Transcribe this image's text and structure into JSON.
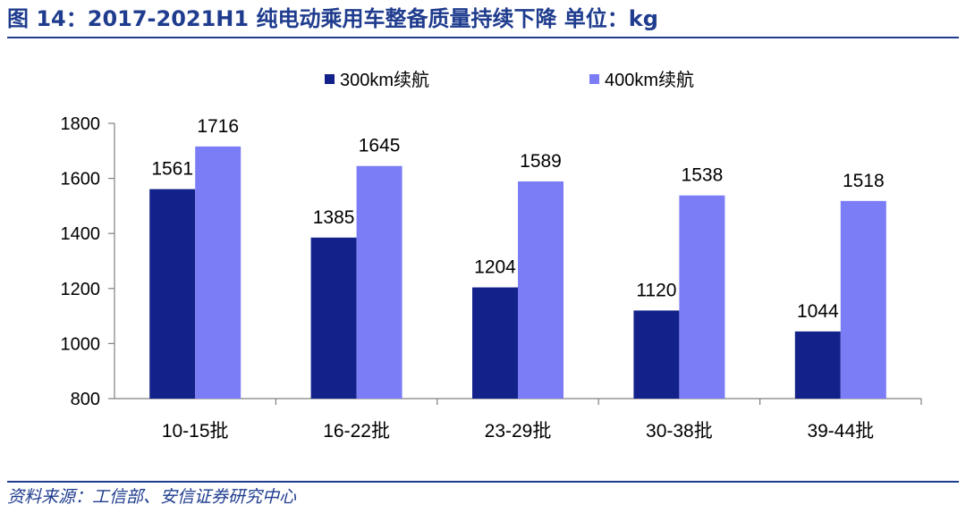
{
  "figure": {
    "title": "图 14：2017-2021H1 纯电动乘用车整备质量持续下降  单位：kg",
    "source": "资料来源：工信部、安信证券研究中心"
  },
  "chart_data": {
    "type": "bar",
    "categories": [
      "10-15批",
      "16-22批",
      "23-29批",
      "30-38批",
      "39-44批"
    ],
    "series": [
      {
        "name": "300km续航",
        "values": [
          1561,
          1385,
          1204,
          1120,
          1044
        ],
        "color": "#13228a"
      },
      {
        "name": "400km续航",
        "values": [
          1716,
          1645,
          1589,
          1538,
          1518
        ],
        "color": "#7b7df6"
      }
    ],
    "ylim": [
      800,
      1800
    ],
    "yticks": [
      800,
      1000,
      1200,
      1400,
      1600,
      1800
    ],
    "legend_position": "top",
    "grid": false,
    "data_labels": true
  }
}
